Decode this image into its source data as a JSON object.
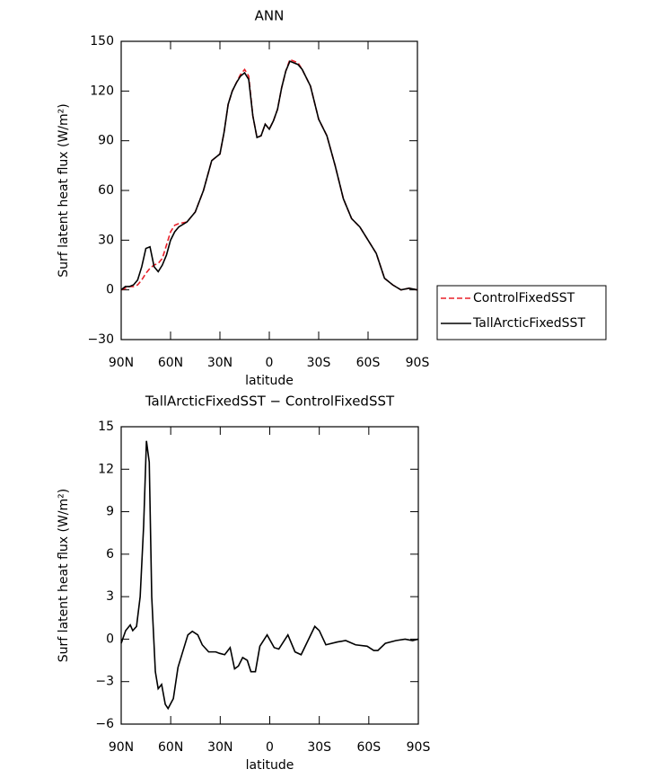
{
  "chart_data": [
    {
      "type": "line",
      "title": "ANN",
      "xlabel": "latitude",
      "ylabel": "Surf latent heat flux (W/m²)",
      "x": [
        90,
        87.5,
        85,
        82.5,
        80,
        77.5,
        75,
        72.5,
        70,
        67.5,
        65,
        62.5,
        60,
        57.5,
        55,
        50,
        45,
        40,
        35,
        30,
        27.5,
        25,
        22.5,
        20,
        17.5,
        15,
        12.5,
        10,
        7.5,
        5,
        2.5,
        0,
        -2.5,
        -5,
        -7.5,
        -10,
        -12.5,
        -15,
        -17.5,
        -20,
        -25,
        -30,
        -35,
        -40,
        -45,
        -50,
        -55,
        -60,
        -65,
        -70,
        -75,
        -80,
        -85,
        -90
      ],
      "series": [
        {
          "name": "ControlFixedSST",
          "color": "#e8202a",
          "linestyle": "dashed",
          "values": [
            0,
            1,
            2,
            2,
            3,
            6,
            10,
            13,
            15,
            16,
            19,
            27,
            35,
            39,
            40,
            41,
            47,
            60,
            78,
            82,
            95,
            112,
            120,
            125,
            130,
            133,
            129,
            105,
            92,
            93,
            100,
            97,
            102,
            109,
            122,
            132,
            139,
            138,
            137,
            133,
            123,
            103,
            93,
            75,
            55,
            43,
            38,
            30,
            22,
            7,
            3,
            0,
            1,
            0
          ]
        },
        {
          "name": "TallArcticFixedSST",
          "color": "#000000",
          "linestyle": "solid",
          "values": [
            0,
            2,
            2,
            3,
            6,
            14,
            25,
            26,
            14,
            11,
            15,
            21,
            30,
            35,
            38,
            41,
            47,
            60,
            78,
            82,
            95,
            112,
            120,
            125,
            129,
            131,
            127,
            105,
            92,
            93,
            100,
            97,
            102,
            109,
            122,
            132,
            138,
            137,
            136,
            133,
            123,
            103,
            93,
            75,
            55,
            43,
            38,
            30,
            22,
            7,
            3,
            0,
            1,
            0
          ]
        }
      ],
      "xlim": [
        90,
        -90
      ],
      "xticks": [
        {
          "value": 90,
          "label": "90N"
        },
        {
          "value": 60,
          "label": "60N"
        },
        {
          "value": 30,
          "label": "30N"
        },
        0,
        {
          "value": -30,
          "label": "30S"
        },
        {
          "value": -60,
          "label": "60S"
        },
        {
          "value": -90,
          "label": "90S"
        }
      ],
      "ylim": [
        -30,
        150
      ],
      "yticks": [
        {
          "value": -30,
          "label": "−30"
        },
        0,
        30,
        60,
        90,
        120,
        150
      ],
      "legend": "right"
    },
    {
      "type": "line",
      "title": "TallArcticFixedSST − ControlFixedSST",
      "xlabel": "latitude",
      "ylabel": "Surf latent heat flux (W/m²)",
      "x": [
        90,
        87.3,
        84.5,
        83,
        80.7,
        78.5,
        76.4,
        74.7,
        73,
        71.5,
        69.3,
        67.6,
        65.5,
        63.3,
        61.6,
        58.4,
        55.6,
        53,
        49.6,
        46.9,
        43.6,
        40.9,
        37,
        32.7,
        30.5,
        27.3,
        24,
        21.3,
        19,
        16.4,
        13.6,
        11.4,
        8.7,
        6,
        1.6,
        -2.7,
        -5.5,
        -11,
        -15.3,
        -19,
        -27.3,
        -30,
        -34,
        -41,
        -46,
        -52,
        -59,
        -63,
        -65.5,
        -70,
        -76.5,
        -82,
        -86.5,
        -90
      ],
      "values": [
        -0.3,
        0.6,
        1.0,
        0.6,
        0.9,
        3,
        8,
        14,
        12.5,
        3,
        -2.3,
        -3.5,
        -3.2,
        -4.6,
        -4.9,
        -4.2,
        -2,
        -1,
        0.3,
        0.55,
        0.3,
        -0.4,
        -0.9,
        -0.9,
        -1.0,
        -1.1,
        -0.6,
        -2.1,
        -1.9,
        -1.3,
        -1.5,
        -2.3,
        -2.3,
        -0.5,
        0.3,
        -0.6,
        -0.7,
        0.3,
        -0.9,
        -1.1,
        0.9,
        0.6,
        -0.4,
        -0.2,
        -0.1,
        -0.4,
        -0.5,
        -0.8,
        -0.8,
        -0.3,
        -0.1,
        0,
        -0.1,
        0
      ],
      "color": "#000000",
      "xlim": [
        90,
        -90
      ],
      "xticks": [
        {
          "value": 90,
          "label": "90N"
        },
        {
          "value": 60,
          "label": "60N"
        },
        {
          "value": 30,
          "label": "30N"
        },
        0,
        {
          "value": -30,
          "label": "30S"
        },
        {
          "value": -60,
          "label": "60S"
        },
        {
          "value": -90,
          "label": "90S"
        }
      ],
      "ylim": [
        -6,
        15
      ],
      "yticks": [
        {
          "value": -6,
          "label": "−6"
        },
        {
          "value": -3,
          "label": "−3"
        },
        0,
        3,
        6,
        9,
        12,
        15
      ]
    }
  ]
}
